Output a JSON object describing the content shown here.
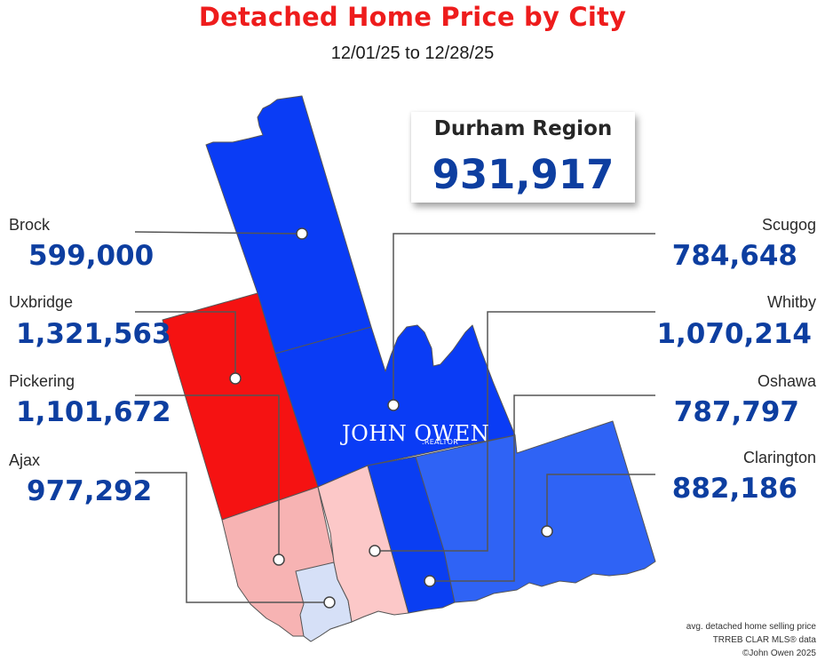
{
  "title": "Detached Home Price by City",
  "subtitle": "12/01/25 to 12/28/25",
  "region_box": {
    "name": "Durham Region",
    "value": "931,917"
  },
  "cities": [
    {
      "name": "Brock",
      "value": "599,000",
      "color": "#0a3cf5"
    },
    {
      "name": "Uxbridge",
      "value": "1,321,563",
      "color": "#f51212"
    },
    {
      "name": "Pickering",
      "value": "1,101,672",
      "color": "#f7b3b3"
    },
    {
      "name": "Ajax",
      "value": "977,292",
      "color": "#d6e0f7"
    },
    {
      "name": "Scugog",
      "value": "784,648",
      "color": "#0a3cf5"
    },
    {
      "name": "Whitby",
      "value": "1,070,214",
      "color": "#fcc8c8"
    },
    {
      "name": "Oshawa",
      "value": "787,797",
      "color": "#0a3ef2"
    },
    {
      "name": "Clarington",
      "value": "882,186",
      "color": "#2f63f5"
    }
  ],
  "logo": {
    "name": "JOHN OWEN",
    "sub": ".REALTOR"
  },
  "footnote": {
    "line1": "avg. detached home selling price",
    "line2": "TRREB CLAR MLS® data",
    "line3": "©John Owen 2025"
  }
}
